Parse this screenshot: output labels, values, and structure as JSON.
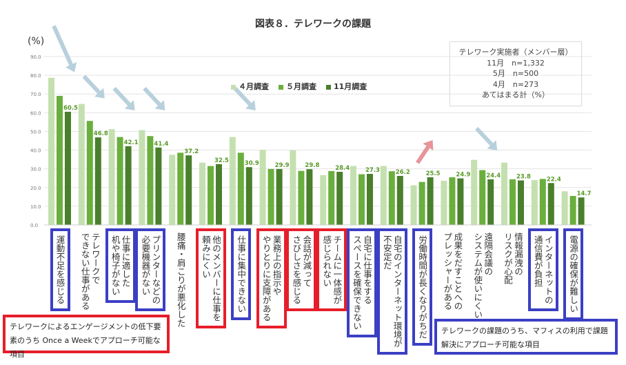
{
  "title": "図表８．テレワークの課題",
  "unit_label": "(%)",
  "info_box": [
    "テレワーク実施者（メンバー層）",
    "11月　n=1,332",
    "5月　n=500",
    "4月　n=273",
    "あてはまる計（%）"
  ],
  "notes": {
    "red": "テレワークによるエンゲージメントの低下要素のうち Once a Weekでアプローチ可能な項目",
    "blue": "テレワークの課題のうち、マフィスの利用で課題解決にアプローチ可能な項目"
  },
  "colors": {
    "april": "#c5e0b0",
    "may": "#6aaf3d",
    "november": "#4a7f2c",
    "value_label": "#5a9a2a",
    "blue_box": "#3b3fc4",
    "red_box": "#e61e2a",
    "down_arrow": "#b8d0dc",
    "up_arrow": "#e8949a"
  },
  "chart_data": {
    "type": "bar",
    "title": "図表８．テレワークの課題",
    "ylabel": "(%)",
    "ylim": [
      0,
      90
    ],
    "yticks": [
      "0.0",
      "10.0",
      "20.0",
      "30.0",
      "40.0",
      "50.0",
      "60.0",
      "70.0",
      "80.0",
      "90.0"
    ],
    "grid": true,
    "legend_position": "top-center",
    "categories": [
      "運動不足を感じる",
      "テレワークで\nできない仕事がある",
      "仕事に適した\n机や椅子がない",
      "プリンターなどの\n必要機器がない",
      "腰痛・肩こりが悪化した",
      "他のメンバーに仕事を\n頼みにくい",
      "仕事に集中できない",
      "業務上の指示や\nやりとりに支障がある",
      "会話が減って\nさびしさを感じる",
      "チームに一体感が\n感じられない",
      "自宅に仕事をする\nスペースを確保できない",
      "自宅のインターネット環境が\n不安定だ",
      "労働時間が長くなりがちだ",
      "成果をだすことへの\nプレッシャーがある",
      "遠隔会議の\nシステムが使いにくい",
      "情報漏洩の\nリスクが心配",
      "インターネットの\n通信費が負担",
      "電源の確保が難しい"
    ],
    "category_highlight": [
      "blue",
      "none",
      "blue",
      "blue",
      "none",
      "red",
      "blue",
      "red",
      "red",
      "red",
      "blue",
      "blue",
      "blue",
      "none",
      "none",
      "none",
      "blue",
      "blue"
    ],
    "series": [
      {
        "name": "４月調査",
        "values": [
          78.7,
          64.7,
          51.2,
          50.7,
          37.5,
          33.3,
          47.0,
          40.2,
          39.9,
          26.6,
          31.5,
          31.5,
          21.2,
          23.6,
          34.8,
          33.3,
          24.0,
          18.0
        ]
      },
      {
        "name": "５月調査",
        "values": [
          69.0,
          55.6,
          47.0,
          47.5,
          38.6,
          31.5,
          38.6,
          29.9,
          28.9,
          28.8,
          27.1,
          28.7,
          23.0,
          25.5,
          29.3,
          24.4,
          24.6,
          15.5
        ]
      },
      {
        "name": "11月調査",
        "values": [
          60.5,
          46.8,
          42.1,
          41.4,
          37.2,
          32.5,
          30.9,
          29.9,
          29.8,
          28.4,
          27.3,
          26.2,
          25.5,
          24.9,
          24.4,
          23.8,
          22.4,
          14.7
        ]
      }
    ],
    "data_labels": [
      "60.5",
      "46.8",
      "42.1",
      "41.4",
      "37.2",
      "32.5",
      "30.9",
      "29.9",
      "29.8",
      "28.4",
      "27.3",
      "26.2",
      "25.5",
      "24.9",
      "24.4",
      "23.8",
      "22.4",
      "14.7"
    ],
    "annotations": {
      "down_arrows_over_categories": [
        0,
        1,
        2,
        3,
        6,
        14
      ],
      "up_arrow_over_category": 12
    }
  }
}
